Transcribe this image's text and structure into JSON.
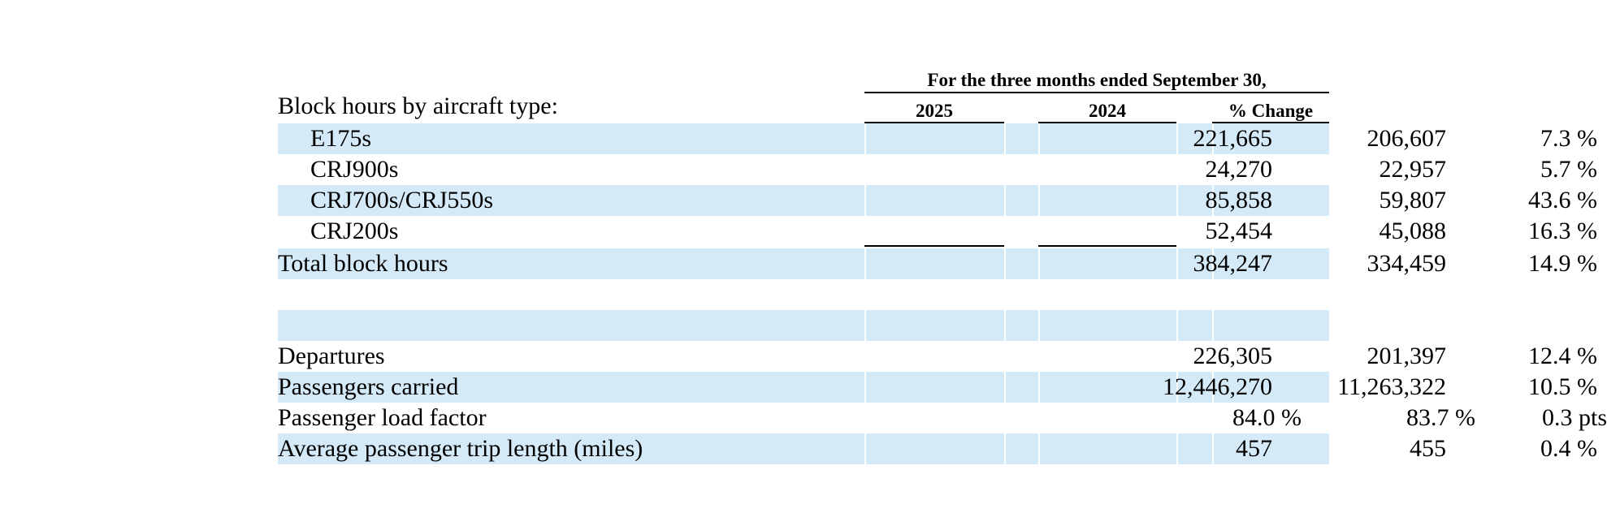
{
  "header": {
    "group_title": "For the three months ended September 30,",
    "col_2025": "2025",
    "col_2024": "2024",
    "col_change": "% Change"
  },
  "section_label": "Block hours by aircraft type:",
  "block_rows": [
    {
      "label": "E175s",
      "v2025": "221,665",
      "v2024": "206,607",
      "change": "7.3 %"
    },
    {
      "label": "CRJ900s",
      "v2025": "24,270",
      "v2024": "22,957",
      "change": "5.7 %"
    },
    {
      "label": "CRJ700s/CRJ550s",
      "v2025": "85,858",
      "v2024": "59,807",
      "change": "43.6 %"
    },
    {
      "label": "CRJ200s",
      "v2025": "52,454",
      "v2024": "45,088",
      "change": "16.3 %"
    }
  ],
  "total_row": {
    "label": "Total block hours",
    "v2025": "384,247",
    "v2024": "334,459",
    "change": "14.9 %"
  },
  "stat_rows": [
    {
      "label": "Departures",
      "v2025": "226,305",
      "v2024": "201,397",
      "change": "12.4 %"
    },
    {
      "label": "Passengers carried",
      "v2025": "12,446,270",
      "v2024": "11,263,322",
      "change": "10.5 %"
    },
    {
      "label": "Passenger load factor",
      "v2025": "84.0 %",
      "v2024": "83.7 %",
      "change": "0.3 pts"
    },
    {
      "label": "Average passenger trip length (miles)",
      "v2025": "457",
      "v2024": "455",
      "change": "0.4 %"
    }
  ],
  "colors": {
    "row_shade": "#d5eaf8",
    "rule": "#000000"
  }
}
